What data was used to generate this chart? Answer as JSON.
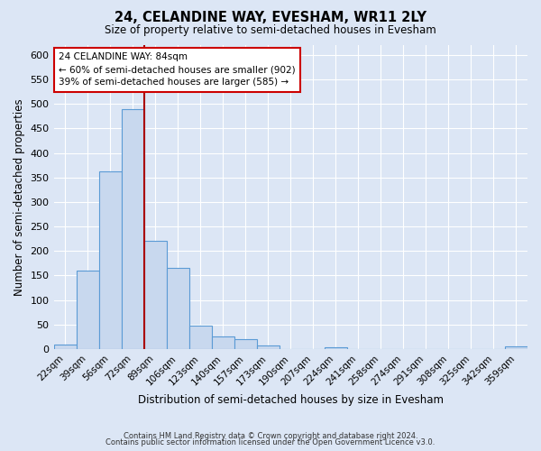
{
  "title1": "24, CELANDINE WAY, EVESHAM, WR11 2LY",
  "title2": "Size of property relative to semi-detached houses in Evesham",
  "xlabel": "Distribution of semi-detached houses by size in Evesham",
  "ylabel": "Number of semi-detached properties",
  "bar_labels": [
    "22sqm",
    "39sqm",
    "56sqm",
    "72sqm",
    "89sqm",
    "106sqm",
    "123sqm",
    "140sqm",
    "157sqm",
    "173sqm",
    "190sqm",
    "207sqm",
    "224sqm",
    "241sqm",
    "258sqm",
    "274sqm",
    "291sqm",
    "308sqm",
    "325sqm",
    "342sqm",
    "359sqm"
  ],
  "bar_values": [
    10,
    160,
    362,
    490,
    220,
    165,
    47,
    25,
    20,
    7,
    0,
    0,
    3,
    0,
    0,
    0,
    0,
    0,
    0,
    0,
    5
  ],
  "bar_color": "#c8d8ee",
  "bar_edge_color": "#5b9bd5",
  "fig_bg_color": "#dce6f5",
  "ax_bg_color": "#dce6f5",
  "grid_color": "#ffffff",
  "vline_x": 3.5,
  "vline_color": "#aa0000",
  "annotation_title": "24 CELANDINE WAY: 84sqm",
  "annotation_line1": "← 60% of semi-detached houses are smaller (902)",
  "annotation_line2": "39% of semi-detached houses are larger (585) →",
  "annotation_box_edge": "#cc0000",
  "annotation_box_face": "#ffffff",
  "ylim": [
    0,
    620
  ],
  "yticks": [
    0,
    50,
    100,
    150,
    200,
    250,
    300,
    350,
    400,
    450,
    500,
    550,
    600
  ],
  "footer1": "Contains HM Land Registry data © Crown copyright and database right 2024.",
  "footer2": "Contains public sector information licensed under the Open Government Licence v3.0."
}
